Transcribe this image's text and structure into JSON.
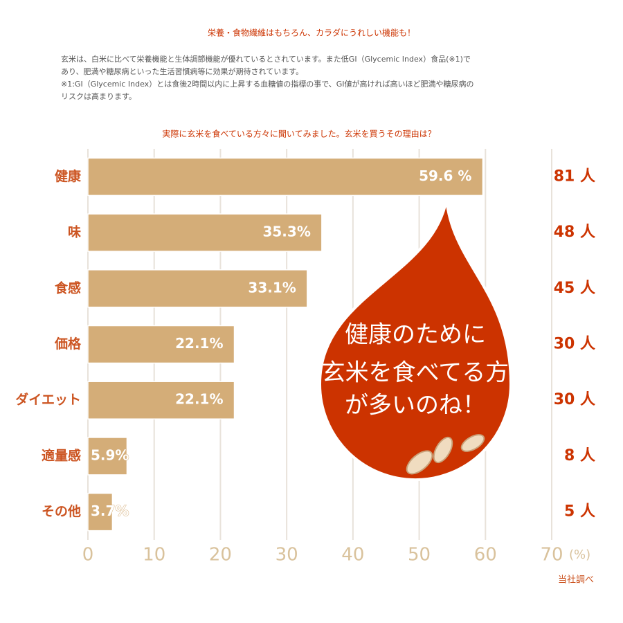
{
  "header": {
    "title": "栄養・食物繊維はもちろん、カラダにうれしい機能も！",
    "paragraph": [
      "玄米は、白米に比べて栄養機能と生体調節機能が優れているとされています。また低GI（Glycemic Index）食品(※1)で",
      "あり、肥満や糖尿病といった生活習慣病等に効果が期待されています。",
      "※1:GI（Glycemic Index）とは食後2時間以内に上昇する血糖値の指標の事で、GI値が高ければ高いほど肥満や糖尿病の",
      "リスクは高まります。"
    ]
  },
  "chart_data": {
    "type": "hbar",
    "title": "実際に玄米を食べている方々に聞いてみました。玄米を買うその理由は？",
    "categories": [
      "健康",
      "味",
      "食感",
      "価格",
      "ダイエット",
      "適量感",
      "その他"
    ],
    "values": [
      59.6,
      35.3,
      33.1,
      22.1,
      22.1,
      5.9,
      3.7
    ],
    "value_labels": [
      "59.6 %",
      "35.3%",
      "33.1%",
      "22.1%",
      "22.1%",
      "5.9%",
      "3.7%"
    ],
    "color": "#d4ad78",
    "counts": {
      "values": [
        81,
        48,
        45,
        30,
        30,
        8,
        5
      ],
      "value_labels": [
        "81 人",
        "48 人",
        "45 人",
        "30 人",
        "30 人",
        "8 人",
        "5 人"
      ]
    },
    "xlim": [
      0,
      70
    ],
    "xticks": [
      0,
      10,
      20,
      30,
      40,
      50,
      60,
      70
    ],
    "x_axis_label": "(%)",
    "grid": true,
    "source": "当社調べ",
    "annotation": [
      "健康のために",
      "玄米を食べてる方",
      "が多いのね！"
    ]
  }
}
